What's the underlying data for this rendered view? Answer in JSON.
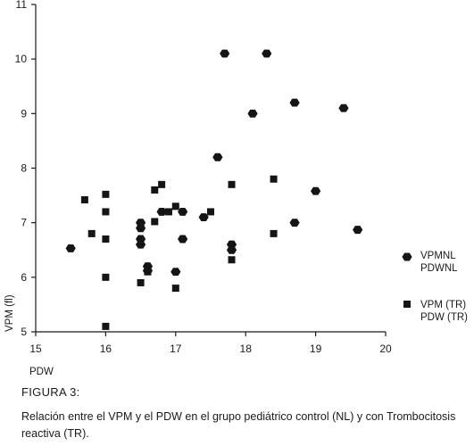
{
  "chart_data": {
    "type": "scatter",
    "xlabel": "PDW",
    "ylabel": "VPM (fl)",
    "xlim": [
      15,
      20
    ],
    "ylim": [
      5,
      11
    ],
    "xticks": [
      "15",
      "16",
      "17",
      "18",
      "19",
      "20"
    ],
    "yticks": [
      "5",
      "6",
      "7",
      "8",
      "9",
      "10",
      "11"
    ],
    "grid": false,
    "legend_position": "right",
    "series": [
      {
        "name": "VPMNL PDWNL",
        "label_lines": [
          "VPMNL",
          "PDWNL"
        ],
        "marker": "hexagon",
        "points": [
          [
            15.5,
            6.53
          ],
          [
            16.5,
            7.0
          ],
          [
            16.5,
            6.9
          ],
          [
            16.5,
            6.7
          ],
          [
            16.5,
            6.6
          ],
          [
            16.6,
            6.2
          ],
          [
            16.6,
            6.12
          ],
          [
            16.8,
            7.2
          ],
          [
            17.0,
            6.1
          ],
          [
            17.1,
            7.2
          ],
          [
            17.1,
            6.7
          ],
          [
            17.4,
            7.1
          ],
          [
            17.6,
            8.2
          ],
          [
            17.7,
            10.1
          ],
          [
            17.8,
            6.6
          ],
          [
            17.8,
            6.5
          ],
          [
            18.1,
            9.0
          ],
          [
            18.3,
            10.1
          ],
          [
            18.7,
            9.2
          ],
          [
            18.7,
            7.0
          ],
          [
            19.0,
            7.58
          ],
          [
            19.4,
            9.1
          ],
          [
            19.6,
            6.87
          ]
        ]
      },
      {
        "name": "VPM (TR) PDW (TR)",
        "label_lines": [
          "VPM (TR)",
          "PDW (TR)"
        ],
        "marker": "square",
        "points": [
          [
            15.7,
            7.42
          ],
          [
            15.8,
            6.8
          ],
          [
            16.0,
            7.52
          ],
          [
            16.0,
            7.2
          ],
          [
            16.0,
            6.7
          ],
          [
            16.0,
            6.0
          ],
          [
            16.0,
            5.1
          ],
          [
            16.5,
            6.95
          ],
          [
            16.5,
            5.9
          ],
          [
            16.6,
            6.1
          ],
          [
            16.7,
            7.6
          ],
          [
            16.7,
            7.02
          ],
          [
            16.8,
            7.7
          ],
          [
            16.9,
            7.2
          ],
          [
            17.0,
            7.3
          ],
          [
            17.0,
            5.8
          ],
          [
            17.5,
            7.2
          ],
          [
            17.8,
            7.7
          ],
          [
            17.8,
            6.32
          ],
          [
            18.4,
            7.8
          ],
          [
            18.4,
            6.8
          ]
        ]
      }
    ]
  },
  "figure": {
    "label": "FIGURA 3:",
    "caption": "Relación entre el VPM y el PDW en el grupo pediátrico control (NL) y con Trombocitosis reactiva (TR)."
  },
  "colors": {
    "marker": "#151515",
    "axis": "#1a1a1a",
    "background": "#ffffff"
  }
}
